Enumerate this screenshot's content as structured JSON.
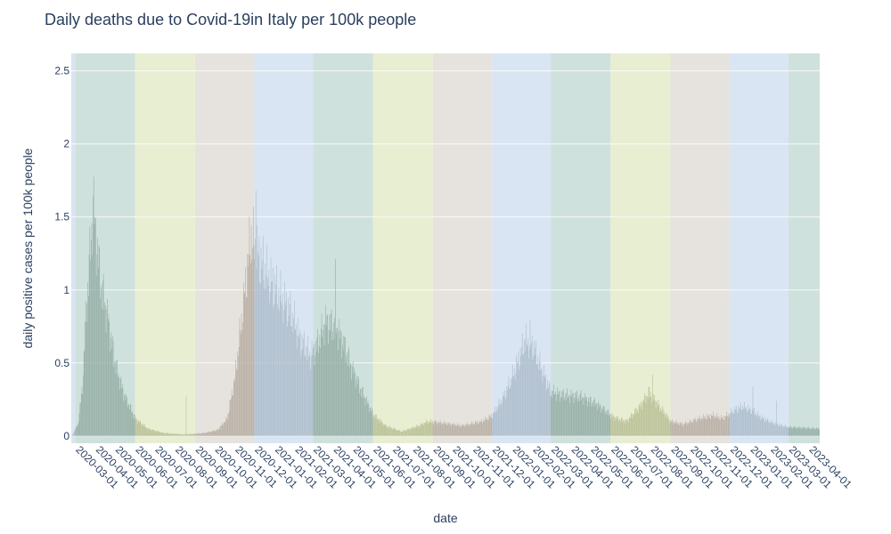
{
  "chart_data": {
    "type": "bar",
    "title": "Daily deaths due to Covid-19in Italy per 100k people",
    "xlabel": "date",
    "ylabel": "daily positive cases per 100k people",
    "x_range": [
      "2020-02-24",
      "2023-04-18"
    ],
    "ylim": [
      -0.05,
      2.62
    ],
    "y_ticks": [
      0,
      0.5,
      1,
      1.5,
      2,
      2.5
    ],
    "y_tick_labels": [
      "0",
      "0.5",
      "1",
      "1.5",
      "2",
      "2.5"
    ],
    "x_tick_labels": [
      "2020-03-01",
      "2020-04-01",
      "2020-05-01",
      "2020-06-01",
      "2020-07-01",
      "2020-08-01",
      "2020-09-01",
      "2020-10-01",
      "2020-11-01",
      "2020-12-01",
      "2021-01-01",
      "2021-02-01",
      "2021-03-01",
      "2021-04-01",
      "2021-05-01",
      "2021-06-01",
      "2021-07-01",
      "2021-08-01",
      "2021-09-01",
      "2021-10-01",
      "2021-11-01",
      "2021-12-01",
      "2022-01-01",
      "2022-02-01",
      "2022-03-01",
      "2022-04-01",
      "2022-05-01",
      "2022-06-01",
      "2022-07-01",
      "2022-08-01",
      "2022-09-01",
      "2022-10-01",
      "2022-11-01",
      "2022-12-01",
      "2023-01-01",
      "2023-02-01",
      "2023-03-01",
      "2023-04-01"
    ],
    "grid": true,
    "seasons": [
      {
        "start": "2020-02-24",
        "end": "2020-03-01",
        "season": "winter"
      },
      {
        "start": "2020-03-01",
        "end": "2020-06-01",
        "season": "spring"
      },
      {
        "start": "2020-06-01",
        "end": "2020-09-01",
        "season": "summer"
      },
      {
        "start": "2020-09-01",
        "end": "2020-12-01",
        "season": "autumn"
      },
      {
        "start": "2020-12-01",
        "end": "2021-03-01",
        "season": "winter"
      },
      {
        "start": "2021-03-01",
        "end": "2021-06-01",
        "season": "spring"
      },
      {
        "start": "2021-06-01",
        "end": "2021-09-01",
        "season": "summer"
      },
      {
        "start": "2021-09-01",
        "end": "2021-12-01",
        "season": "autumn"
      },
      {
        "start": "2021-12-01",
        "end": "2022-03-01",
        "season": "winter"
      },
      {
        "start": "2022-03-01",
        "end": "2022-06-01",
        "season": "spring"
      },
      {
        "start": "2022-06-01",
        "end": "2022-09-01",
        "season": "summer"
      },
      {
        "start": "2022-09-01",
        "end": "2022-12-01",
        "season": "autumn"
      },
      {
        "start": "2022-12-01",
        "end": "2023-03-01",
        "season": "winter"
      },
      {
        "start": "2023-03-01",
        "end": "2023-04-18",
        "season": "spring"
      }
    ],
    "season_colors": {
      "winter": "#d9e5f2",
      "spring": "#cfe1dd",
      "summer": "#e8eed2",
      "autumn": "#e6e3de"
    },
    "bar_colors": {
      "winter": "#a8b8c6",
      "spring": "#8fa89f",
      "summer": "#b4b98e",
      "autumn": "#b2a79c"
    },
    "series_profile": {
      "note_free": true,
      "points": [
        [
          "2020-02-24",
          0.0
        ],
        [
          "2020-03-05",
          0.08
        ],
        [
          "2020-03-12",
          0.35
        ],
        [
          "2020-03-18",
          0.9
        ],
        [
          "2020-03-25",
          1.35
        ],
        [
          "2020-03-28",
          1.6
        ],
        [
          "2020-04-03",
          1.3
        ],
        [
          "2020-04-10",
          1.02
        ],
        [
          "2020-04-20",
          0.8
        ],
        [
          "2020-05-01",
          0.5
        ],
        [
          "2020-05-15",
          0.28
        ],
        [
          "2020-06-01",
          0.12
        ],
        [
          "2020-06-20",
          0.05
        ],
        [
          "2020-07-15",
          0.02
        ],
        [
          "2020-08-15",
          0.01
        ],
        [
          "2020-09-15",
          0.02
        ],
        [
          "2020-10-05",
          0.04
        ],
        [
          "2020-10-20",
          0.12
        ],
        [
          "2020-11-01",
          0.4
        ],
        [
          "2020-11-15",
          0.95
        ],
        [
          "2020-11-25",
          1.35
        ],
        [
          "2020-12-05",
          1.25
        ],
        [
          "2020-12-20",
          1.1
        ],
        [
          "2021-01-10",
          0.95
        ],
        [
          "2021-01-25",
          0.85
        ],
        [
          "2021-02-10",
          0.65
        ],
        [
          "2021-02-25",
          0.55
        ],
        [
          "2021-03-05",
          0.6
        ],
        [
          "2021-03-20",
          0.78
        ],
        [
          "2021-04-05",
          0.75
        ],
        [
          "2021-04-15",
          0.65
        ],
        [
          "2021-05-01",
          0.45
        ],
        [
          "2021-05-15",
          0.3
        ],
        [
          "2021-06-01",
          0.15
        ],
        [
          "2021-06-20",
          0.07
        ],
        [
          "2021-07-15",
          0.03
        ],
        [
          "2021-08-10",
          0.07
        ],
        [
          "2021-08-25",
          0.1
        ],
        [
          "2021-09-15",
          0.09
        ],
        [
          "2021-10-15",
          0.07
        ],
        [
          "2021-11-15",
          0.1
        ],
        [
          "2021-12-01",
          0.14
        ],
        [
          "2021-12-20",
          0.28
        ],
        [
          "2022-01-05",
          0.45
        ],
        [
          "2022-01-20",
          0.65
        ],
        [
          "2022-02-01",
          0.62
        ],
        [
          "2022-02-15",
          0.45
        ],
        [
          "2022-03-01",
          0.3
        ],
        [
          "2022-03-20",
          0.28
        ],
        [
          "2022-04-15",
          0.27
        ],
        [
          "2022-05-10",
          0.22
        ],
        [
          "2022-06-05",
          0.13
        ],
        [
          "2022-06-25",
          0.1
        ],
        [
          "2022-07-15",
          0.2
        ],
        [
          "2022-07-30",
          0.3
        ],
        [
          "2022-08-15",
          0.2
        ],
        [
          "2022-09-01",
          0.1
        ],
        [
          "2022-09-20",
          0.08
        ],
        [
          "2022-10-15",
          0.12
        ],
        [
          "2022-11-05",
          0.14
        ],
        [
          "2022-11-20",
          0.12
        ],
        [
          "2022-12-05",
          0.17
        ],
        [
          "2022-12-20",
          0.2
        ],
        [
          "2023-01-05",
          0.17
        ],
        [
          "2023-01-20",
          0.12
        ],
        [
          "2023-02-10",
          0.08
        ],
        [
          "2023-03-01",
          0.06
        ],
        [
          "2023-04-18",
          0.05
        ]
      ],
      "spikes": [
        [
          "2020-03-28",
          1.64
        ],
        [
          "2020-03-31",
          1.5
        ],
        [
          "2020-04-20",
          0.8
        ],
        [
          "2020-08-18",
          0.27
        ],
        [
          "2020-12-03",
          1.68
        ],
        [
          "2020-11-26",
          1.44
        ],
        [
          "2021-04-04",
          1.21
        ],
        [
          "2022-01-28",
          0.79
        ],
        [
          "2022-08-04",
          0.42
        ],
        [
          "2023-01-05",
          0.34
        ],
        [
          "2023-02-10",
          0.24
        ]
      ]
    }
  }
}
